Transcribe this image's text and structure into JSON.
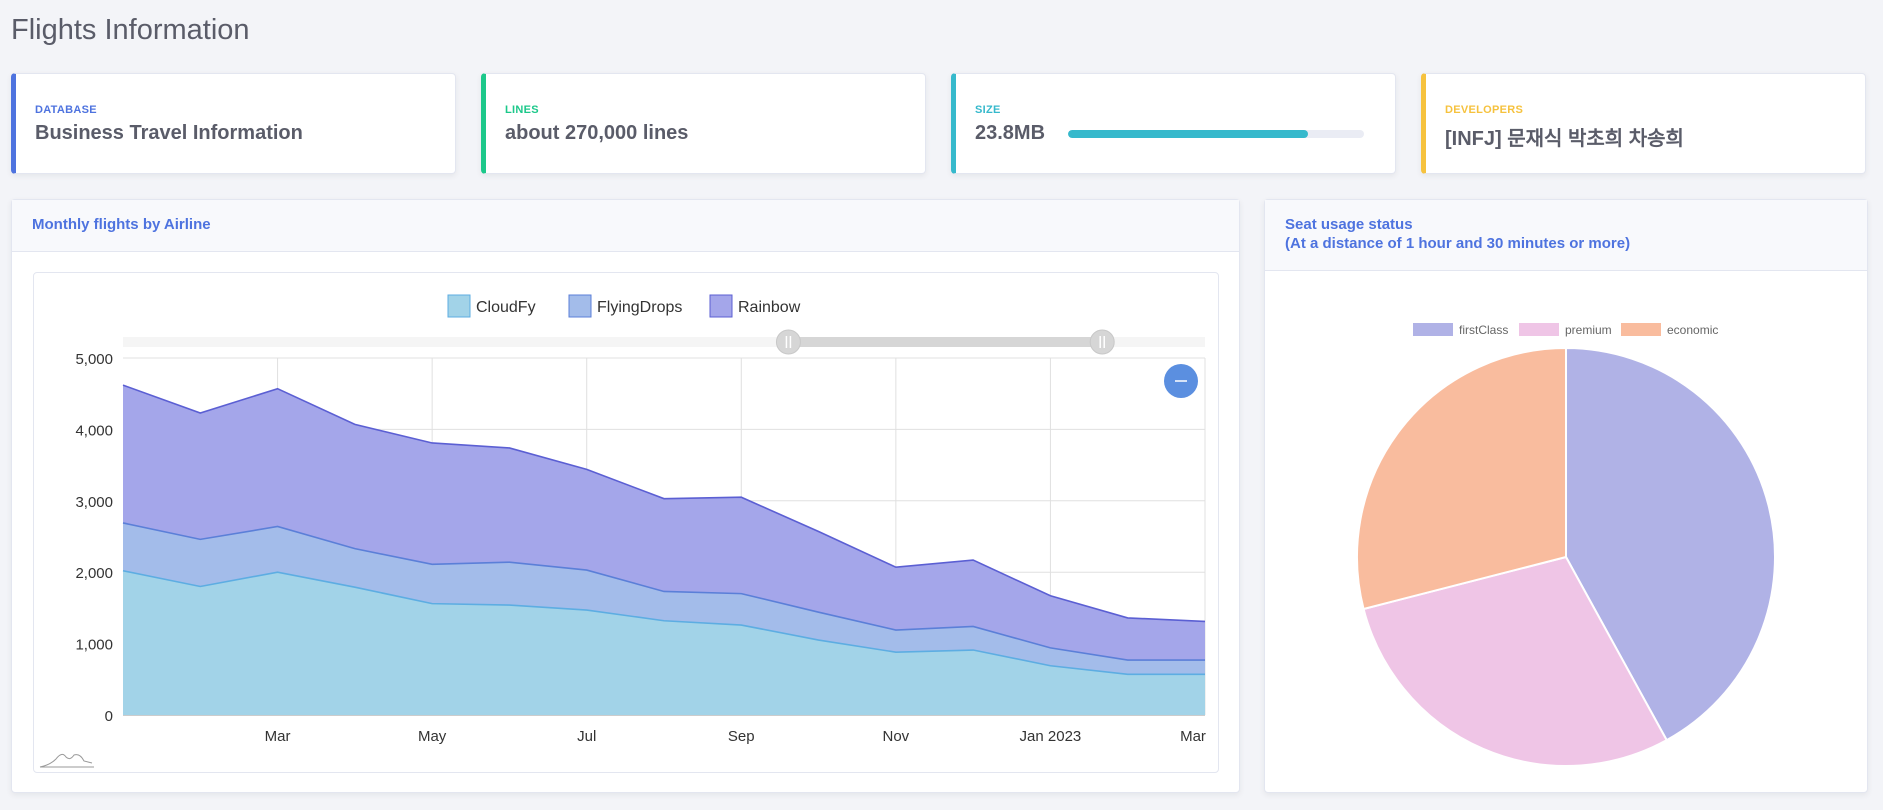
{
  "page": {
    "title": "Flights Information"
  },
  "stats": {
    "database": {
      "label": "DATABASE",
      "value": "Business Travel Information"
    },
    "lines": {
      "label": "LINES",
      "value": "about 270,000 lines"
    },
    "size": {
      "label": "SIZE",
      "value": "23.8MB",
      "progress": 0.81
    },
    "developers": {
      "label": "DEVELOPERS",
      "value": "[INFJ] 문재식 박초희 차송희"
    }
  },
  "colors": {
    "primary": "#4e73df",
    "success": "#1cc88a",
    "info": "#36b9cc",
    "warning": "#f6c23e",
    "cloudfy": "#a2d3e8",
    "flyingdrops": "#a3bcea",
    "rainbow": "#a4a6ea",
    "firstClass": "#b0b2e6",
    "premium": "#efc5e6",
    "economic": "#f9bc9e"
  },
  "area_panel": {
    "title": "Monthly flights by Airline",
    "zoom_icon": "minus-icon"
  },
  "pie_panel": {
    "title_line1": "Seat usage status",
    "title_line2": "(At a distance of 1 hour and 30 minutes or more)"
  },
  "chart_data": [
    {
      "type": "area",
      "stacked": true,
      "title": "Monthly flights by Airline",
      "x": [
        "2022-01",
        "2022-02",
        "2022-03",
        "2022-04",
        "2022-05",
        "2022-06",
        "2022-07",
        "2022-08",
        "2022-09",
        "2022-10",
        "2022-11",
        "2022-12",
        "2023-01",
        "2023-02",
        "2023-03"
      ],
      "x_ticks": [
        "Mar",
        "May",
        "Jul",
        "Sep",
        "Nov",
        "Jan 2023",
        "Mar"
      ],
      "y_ticks": [
        "0",
        "1,000",
        "2,000",
        "3,000",
        "4,000",
        "5,000"
      ],
      "ylim": [
        0,
        5000
      ],
      "legend": "top-center",
      "grid": true,
      "series": [
        {
          "name": "CloudFy",
          "values": [
            2020,
            1800,
            2000,
            1790,
            1560,
            1540,
            1470,
            1320,
            1260,
            1050,
            880,
            910,
            690,
            570,
            570
          ]
        },
        {
          "name": "FlyingDrops",
          "values": [
            670,
            660,
            640,
            540,
            550,
            600,
            560,
            410,
            440,
            390,
            310,
            330,
            250,
            200,
            200
          ]
        },
        {
          "name": "Rainbow",
          "values": [
            1930,
            1770,
            1930,
            1740,
            1700,
            1600,
            1410,
            1300,
            1350,
            1130,
            880,
            930,
            730,
            590,
            540
          ]
        }
      ],
      "dataZoom": {
        "start": 0.615,
        "end": 0.905
      }
    },
    {
      "type": "pie",
      "title": "Seat usage status (At a distance of 1 hour and 30 minutes or more)",
      "legend": "top-center",
      "categories": [
        "firstClass",
        "premium",
        "economic"
      ],
      "values": [
        42,
        29,
        29
      ]
    }
  ]
}
